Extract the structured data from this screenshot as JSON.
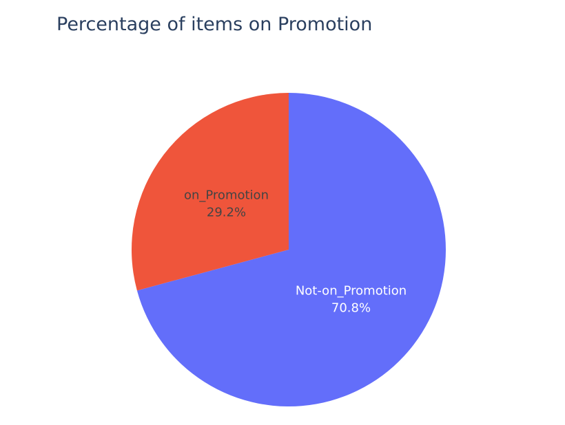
{
  "chart_data": {
    "type": "pie",
    "title": "Percentage of items on Promotion",
    "slices": [
      {
        "label": "Not-on_Promotion",
        "value": 70.8,
        "value_text": "70.8%",
        "color": "#636efa",
        "text_color": "#ffffff"
      },
      {
        "label": "on_Promotion",
        "value": 29.2,
        "value_text": "29.2%",
        "color": "#ef553b",
        "text_color": "#444444"
      }
    ],
    "direction": "clockwise",
    "start_angle": "12 o'clock"
  }
}
